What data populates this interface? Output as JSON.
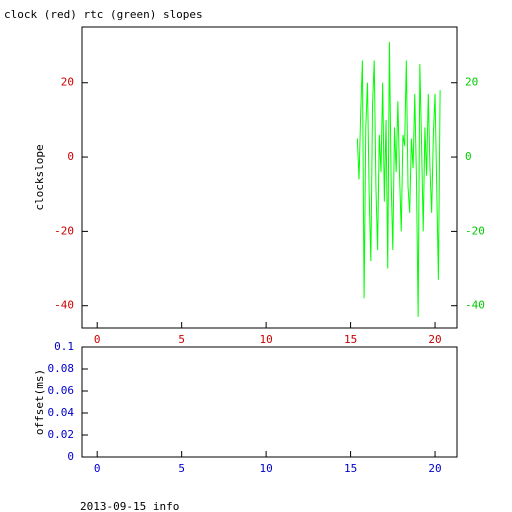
{
  "chart_data": [
    {
      "type": "line",
      "title": "clock (red) rtc (green) slopes",
      "y_label": "clockslope",
      "xlim": [
        -0.9,
        21.3
      ],
      "xticks": [
        0,
        5,
        10,
        15,
        20
      ],
      "ylim": [
        -46,
        35
      ],
      "yticks": [
        -40,
        -20,
        0,
        20
      ],
      "y2lim": [
        -46,
        35
      ],
      "y2ticks": [
        -40,
        -20,
        0,
        20
      ],
      "x_tick_color": "#cc0000",
      "y_tick_color": "#cc0000",
      "y2_tick_color": "#00cc00",
      "series": [
        {
          "color": "#00ff00",
          "axis": "y2",
          "x": [
            15.4,
            15.5,
            15.6,
            15.7,
            15.8,
            15.9,
            16.0,
            16.1,
            16.2,
            16.3,
            16.4,
            16.5,
            16.6,
            16.7,
            16.8,
            16.9,
            17.0,
            17.1,
            17.2,
            17.3,
            17.4,
            17.5,
            17.6,
            17.7,
            17.8,
            17.9,
            18.0,
            18.1,
            18.2,
            18.3,
            18.4,
            18.5,
            18.6,
            18.7,
            18.8,
            18.9,
            19.0,
            19.1,
            19.2,
            19.3,
            19.4,
            19.5,
            19.6,
            19.7,
            19.8,
            19.9,
            20.0,
            20.1,
            20.2,
            20.3
          ],
          "values": [
            5,
            -6,
            12,
            26,
            -38,
            8,
            20,
            -10,
            -28,
            14,
            26,
            -8,
            -25,
            6,
            -4,
            20,
            -12,
            10,
            -30,
            31,
            -6,
            -25,
            8,
            -4,
            15,
            -5,
            -20,
            6,
            3,
            26,
            -8,
            -15,
            5,
            -3,
            17,
            -6,
            -43,
            25,
            4,
            -20,
            8,
            -5,
            17,
            -3,
            -15,
            6,
            17,
            -8,
            -33,
            18
          ]
        }
      ]
    },
    {
      "type": "line",
      "y_label": "offset(ms)",
      "xlim": [
        -0.9,
        21.3
      ],
      "xticks": [
        0,
        5,
        10,
        15,
        20
      ],
      "ylim": [
        0,
        0.1
      ],
      "yticks": [
        0,
        0.02,
        0.04,
        0.06,
        0.08,
        0.1
      ],
      "x_tick_color": "#0000cc",
      "y_tick_color": "#0000cc",
      "series": []
    }
  ],
  "footer": "2013-09-15 info"
}
